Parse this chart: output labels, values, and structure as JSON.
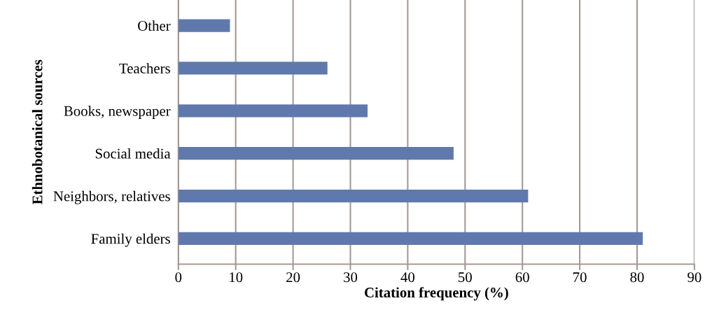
{
  "chart_data": {
    "type": "bar",
    "orientation": "horizontal",
    "xlabel": "Citation frequency (%)",
    "ylabel": "Ethnobotanical sources",
    "categories": [
      "Other",
      "Teachers",
      "Books, newspaper",
      "Social media",
      "Neighbors, relatives",
      "Family elders"
    ],
    "values": [
      9,
      26,
      33,
      48,
      61,
      81
    ],
    "color": "#6079ad",
    "xlim": [
      0,
      90
    ],
    "xticks": [
      0,
      10,
      20,
      30,
      40,
      50,
      60,
      70,
      80,
      90
    ],
    "grid": "x",
    "legend": false
  }
}
